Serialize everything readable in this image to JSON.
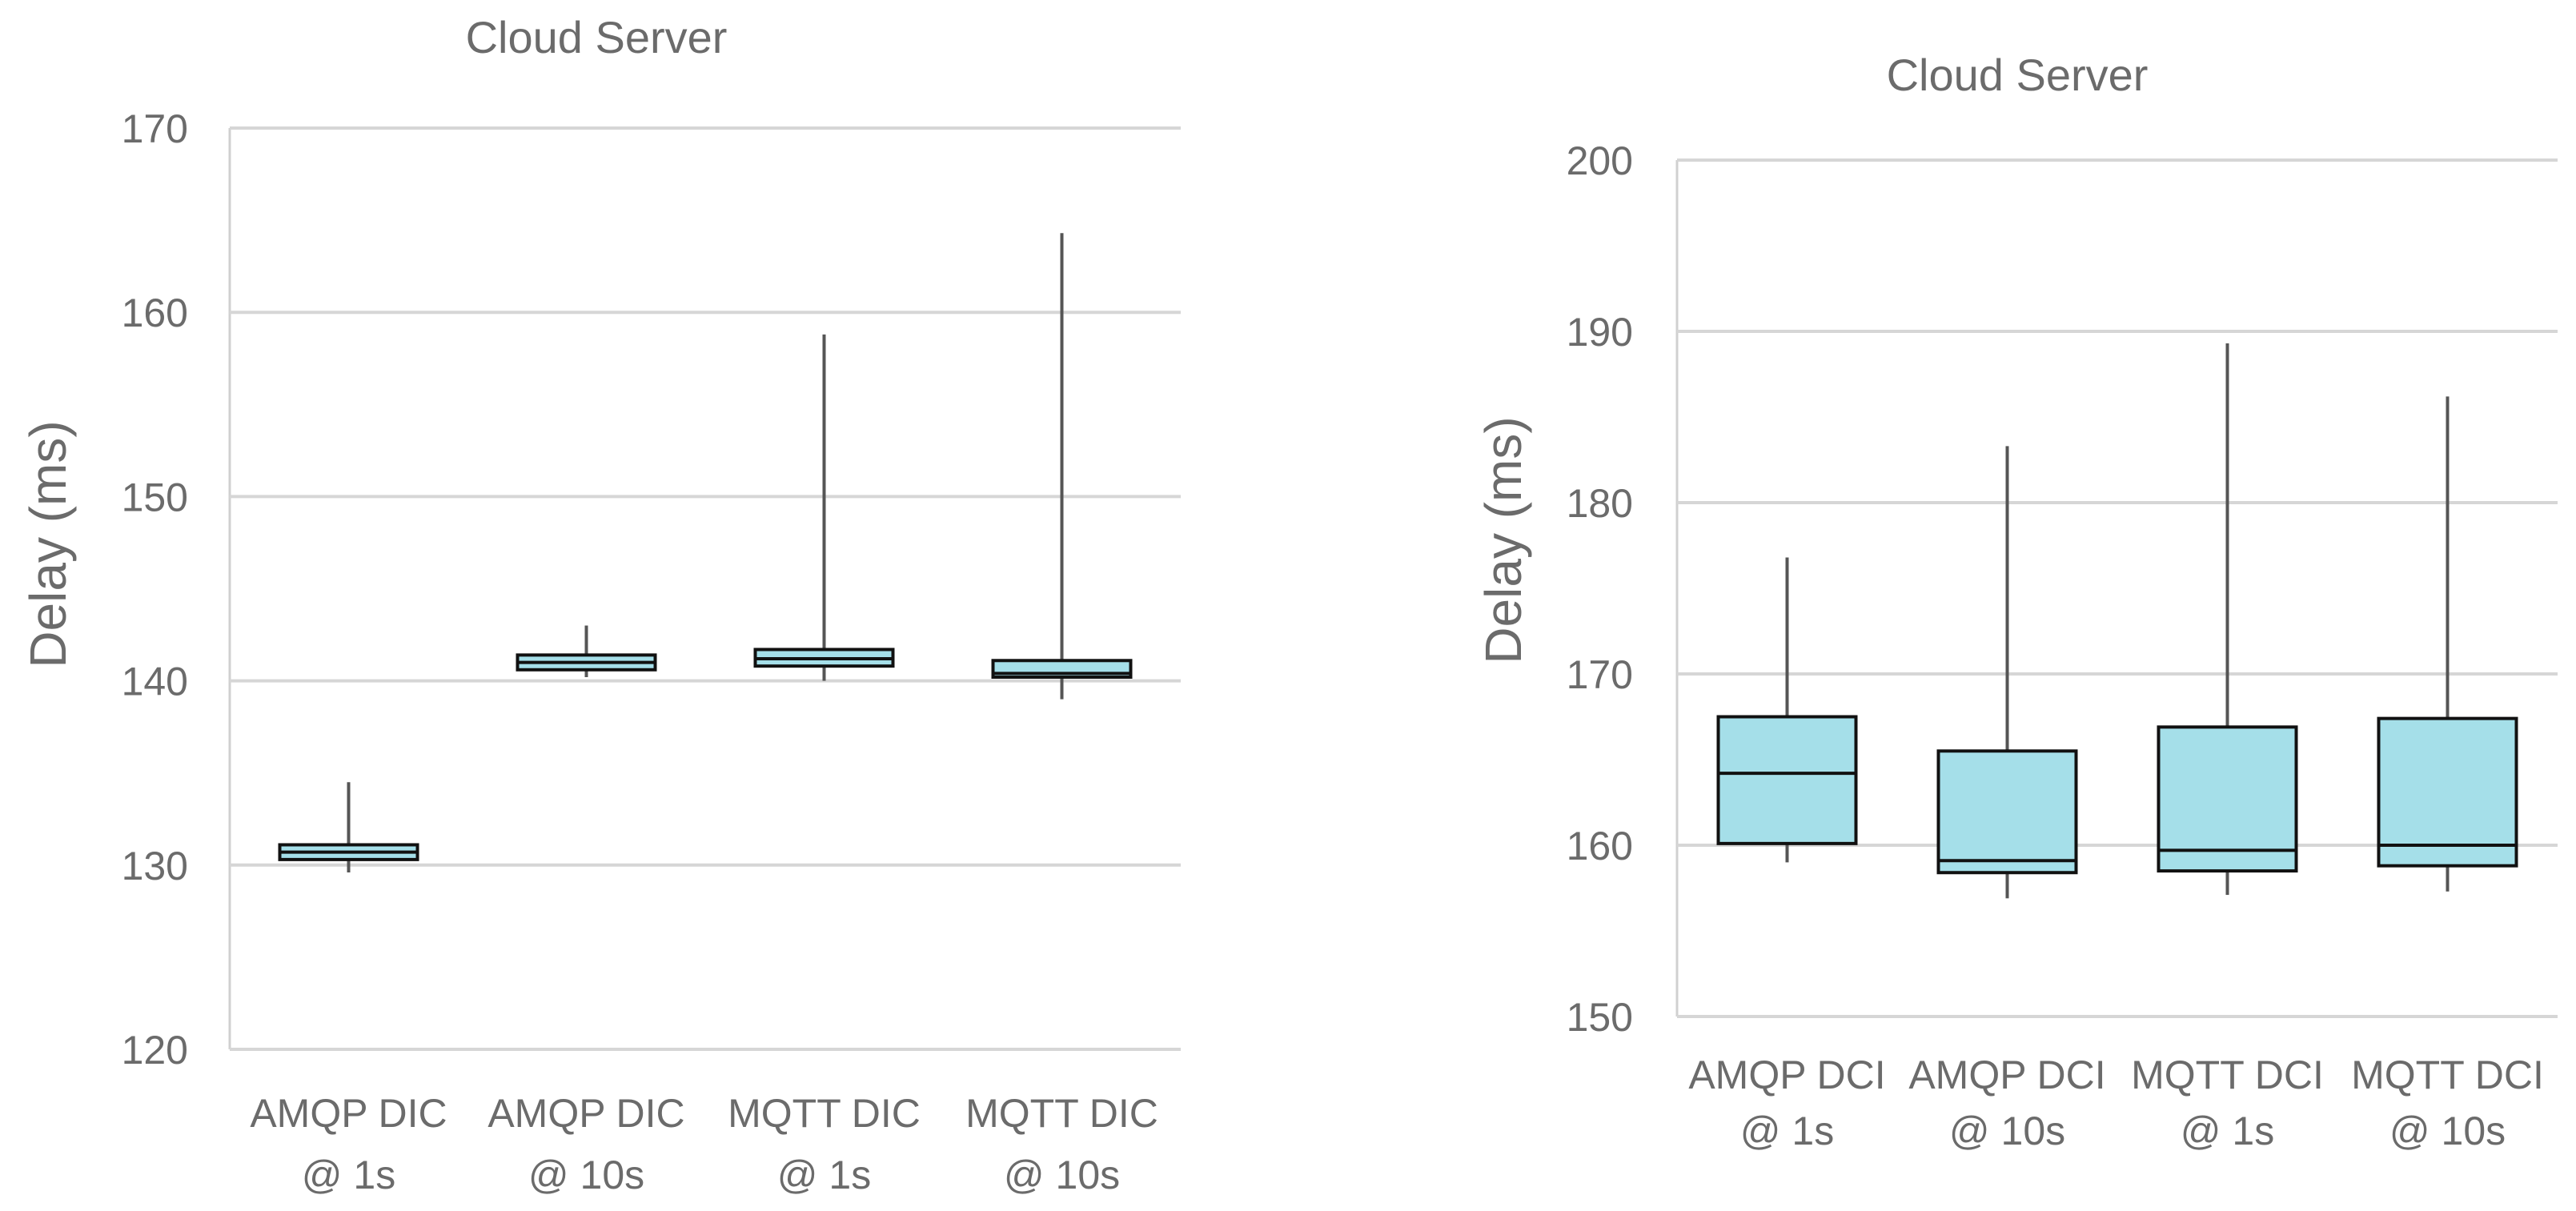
{
  "chart_data": [
    {
      "type": "box",
      "title": "Cloud Server",
      "ylabel": "Delay (ms)",
      "xlabel": "",
      "ylim": [
        120,
        170
      ],
      "yticks": [
        120,
        130,
        140,
        150,
        160,
        170
      ],
      "grid": true,
      "box_color": "#a5dfe9",
      "categories": [
        {
          "line1": "AMQP DIC",
          "line2": "@ 1s"
        },
        {
          "line1": "AMQP DIC",
          "line2": "@ 10s"
        },
        {
          "line1": "MQTT DIC",
          "line2": "@ 1s"
        },
        {
          "line1": "MQTT DIC",
          "line2": "@ 10s"
        }
      ],
      "boxes": [
        {
          "min": 129.6,
          "q1": 130.3,
          "median": 130.7,
          "q3": 131.1,
          "max": 134.5
        },
        {
          "min": 140.2,
          "q1": 140.6,
          "median": 141.0,
          "q3": 141.4,
          "max": 143.0
        },
        {
          "min": 140.0,
          "q1": 140.8,
          "median": 141.2,
          "q3": 141.7,
          "max": 158.8
        },
        {
          "min": 139.0,
          "q1": 140.2,
          "median": 140.4,
          "q3": 141.1,
          "max": 164.3
        }
      ]
    },
    {
      "type": "box",
      "title": "Cloud Server",
      "ylabel": "Delay (ms)",
      "xlabel": "",
      "ylim": [
        150,
        200
      ],
      "yticks": [
        150,
        160,
        170,
        180,
        190,
        200
      ],
      "grid": true,
      "box_color": "#a5dfe9",
      "categories": [
        {
          "line1": "AMQP DCI",
          "line2": "@ 1s"
        },
        {
          "line1": "AMQP DCI",
          "line2": "@ 10s"
        },
        {
          "line1": "MQTT DCI",
          "line2": "@ 1s"
        },
        {
          "line1": "MQTT DCI",
          "line2": "@ 10s"
        }
      ],
      "boxes": [
        {
          "min": 159.0,
          "q1": 160.1,
          "median": 164.2,
          "q3": 167.5,
          "max": 176.8
        },
        {
          "min": 156.9,
          "q1": 158.4,
          "median": 159.1,
          "q3": 165.5,
          "max": 183.3
        },
        {
          "min": 157.1,
          "q1": 158.5,
          "median": 159.7,
          "q3": 166.9,
          "max": 189.3
        },
        {
          "min": 157.3,
          "q1": 158.8,
          "median": 160.0,
          "q3": 167.4,
          "max": 186.2
        }
      ]
    }
  ]
}
